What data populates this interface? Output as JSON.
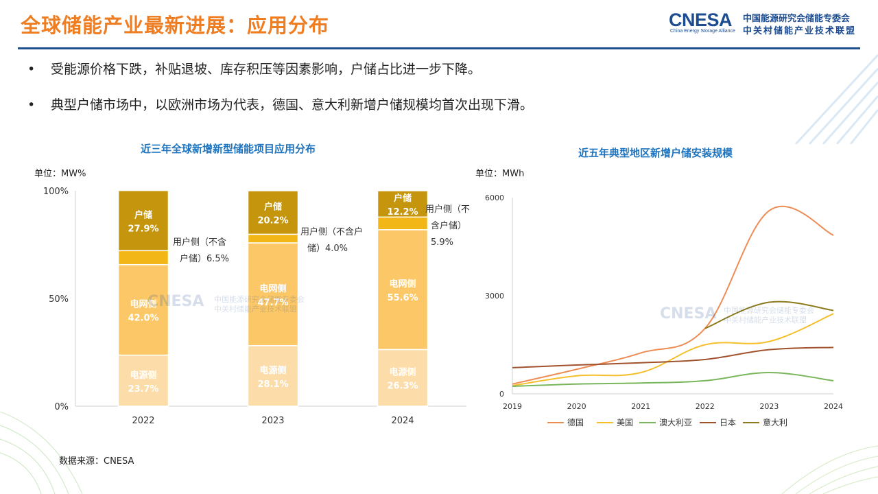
{
  "header": {
    "title": "全球储能产业最新进展：应用分布",
    "logo_text": "CNESA",
    "logo_subtitle": "China Energy Storage Alliance",
    "logo_line1": "中国能源研究会储能专委会",
    "logo_line2": "中关村储能产业技术联盟"
  },
  "bullets": [
    "受能源价格下跌，补贴退坡、库存积压等因素影响，户储占比进一步下降。",
    "典型户储市场中，以欧洲市场为代表，德国、意大利新增户储规模均首次出现下滑。"
  ],
  "bullet_symbol": "•",
  "source": "数据来源：CNESA",
  "colors": {
    "title": "#ef7d22",
    "divider": "#1f4e8c",
    "chart_title": "#1e73be",
    "household": "#c5950e",
    "user_side_other": "#f2b716",
    "grid_side": "#fbc767",
    "source_side": "#fcdca9",
    "germany": "#ed8c55",
    "usa": "#f5bf2b",
    "australia": "#78b65a",
    "japan": "#a0522d",
    "italy": "#8d7a1c"
  },
  "chart_data": [
    {
      "type": "bar",
      "stacked": true,
      "title": "近三年全球新增新型储能项目应用分布",
      "unit_label": "单位：MW%",
      "categories": [
        "2022",
        "2023",
        "2024"
      ],
      "ylim": [
        0,
        100
      ],
      "yticks": [
        "0%",
        "50%",
        "100%"
      ],
      "series": [
        {
          "name": "电源侧",
          "values": [
            23.7,
            28.1,
            26.3
          ],
          "labels": [
            "23.7%",
            "28.1%",
            "26.3%"
          ]
        },
        {
          "name": "电网侧",
          "values": [
            42.0,
            47.7,
            55.6
          ],
          "labels": [
            "42.0%",
            "47.7%",
            "55.6%"
          ]
        },
        {
          "name": "用户侧（不含户储）",
          "values": [
            6.5,
            4.0,
            5.9
          ],
          "labels": [
            "6.5%",
            "4.0%",
            "5.9%"
          ]
        },
        {
          "name": "户储",
          "values": [
            27.9,
            20.2,
            12.2
          ],
          "labels": [
            "27.9%",
            "20.2%",
            "12.2%"
          ]
        }
      ],
      "callouts": [
        {
          "lines": [
            "用户侧（不含",
            "户储）6.5%"
          ]
        },
        {
          "lines": [
            "用户侧（不含户",
            "储）4.0%"
          ]
        },
        {
          "lines": [
            "用户侧（不",
            "含户储）",
            "5.9%"
          ]
        }
      ]
    },
    {
      "type": "line",
      "title": "近五年典型地区新增户储安装规模",
      "unit_label": "单位：MWh",
      "x": [
        "2019",
        "2020",
        "2021",
        "2022",
        "2023",
        "2024"
      ],
      "ylim": [
        0,
        6000
      ],
      "yticks": [
        "0",
        "3000",
        "6000"
      ],
      "series": [
        {
          "name": "德国",
          "values": [
            300,
            750,
            1250,
            2000,
            5600,
            4850
          ]
        },
        {
          "name": "美国",
          "values": [
            250,
            550,
            650,
            1500,
            1600,
            2450
          ]
        },
        {
          "name": "澳大利亚",
          "values": [
            230,
            300,
            330,
            400,
            650,
            400
          ]
        },
        {
          "name": "日本",
          "values": [
            800,
            880,
            950,
            1050,
            1350,
            1420
          ]
        },
        {
          "name": "意大利",
          "values": [
            null,
            null,
            null,
            2000,
            2800,
            2550
          ]
        }
      ]
    }
  ]
}
